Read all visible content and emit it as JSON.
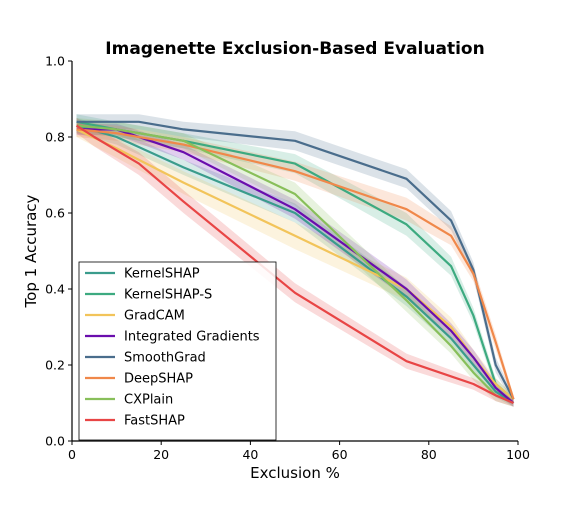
{
  "chart_data": {
    "type": "line",
    "title": "Imagenette Exclusion-Based Evaluation",
    "xlabel": "Exclusion %",
    "ylabel": "Top 1 Accuracy",
    "xlim": [
      0,
      100
    ],
    "ylim": [
      0.0,
      1.0
    ],
    "xticks": [
      0,
      20,
      40,
      60,
      80,
      100
    ],
    "yticks": [
      0.0,
      0.2,
      0.4,
      0.6,
      0.8,
      1.0
    ],
    "xtick_labels": [
      "0",
      "20",
      "40",
      "60",
      "80",
      "100"
    ],
    "ytick_labels": [
      "0.0",
      "0.2",
      "0.4",
      "0.6",
      "0.8",
      "1.0"
    ],
    "grid": false,
    "legend_position": "lower-left",
    "series": [
      {
        "name": "KernelSHAP",
        "color": "#3a9c8c",
        "x": [
          1,
          10,
          25,
          50,
          75,
          85,
          90,
          95,
          99
        ],
        "y": [
          0.83,
          0.8,
          0.72,
          0.6,
          0.38,
          0.27,
          0.2,
          0.13,
          0.1
        ],
        "band": [
          0.02,
          0.02,
          0.02,
          0.025,
          0.025,
          0.02,
          0.02,
          0.015,
          0.01
        ]
      },
      {
        "name": "KernelSHAP-S",
        "color": "#3daa80",
        "x": [
          1,
          10,
          25,
          50,
          75,
          85,
          90,
          95,
          99
        ],
        "y": [
          0.84,
          0.82,
          0.79,
          0.73,
          0.57,
          0.46,
          0.33,
          0.15,
          0.11
        ],
        "band": [
          0.02,
          0.02,
          0.02,
          0.025,
          0.03,
          0.025,
          0.02,
          0.015,
          0.01
        ]
      },
      {
        "name": "GradCAM",
        "color": "#f2c45a",
        "x": [
          1,
          10,
          25,
          50,
          75,
          85,
          90,
          95,
          99
        ],
        "y": [
          0.82,
          0.77,
          0.68,
          0.54,
          0.4,
          0.3,
          0.22,
          0.15,
          0.11
        ],
        "band": [
          0.02,
          0.025,
          0.03,
          0.035,
          0.03,
          0.025,
          0.02,
          0.015,
          0.01
        ]
      },
      {
        "name": "Integrated Gradients",
        "color": "#6a0dad",
        "x": [
          1,
          10,
          25,
          50,
          75,
          85,
          90,
          95,
          99
        ],
        "y": [
          0.82,
          0.82,
          0.76,
          0.61,
          0.4,
          0.29,
          0.22,
          0.14,
          0.1
        ],
        "band": [
          0.015,
          0.015,
          0.02,
          0.025,
          0.025,
          0.02,
          0.02,
          0.015,
          0.01
        ]
      },
      {
        "name": "SmoothGrad",
        "color": "#4a6d8c",
        "x": [
          1,
          5,
          15,
          25,
          50,
          75,
          85,
          90,
          95,
          99
        ],
        "y": [
          0.84,
          0.84,
          0.84,
          0.82,
          0.79,
          0.69,
          0.58,
          0.45,
          0.2,
          0.11
        ],
        "band": [
          0.02,
          0.02,
          0.02,
          0.02,
          0.025,
          0.025,
          0.025,
          0.02,
          0.02,
          0.01
        ]
      },
      {
        "name": "DeepSHAP",
        "color": "#f0884a",
        "x": [
          1,
          10,
          25,
          50,
          75,
          85,
          90,
          95,
          99
        ],
        "y": [
          0.82,
          0.81,
          0.78,
          0.71,
          0.61,
          0.54,
          0.44,
          0.26,
          0.11
        ],
        "band": [
          0.02,
          0.02,
          0.02,
          0.025,
          0.03,
          0.025,
          0.02,
          0.02,
          0.01
        ]
      },
      {
        "name": "CXPlain",
        "color": "#88bf5a",
        "x": [
          1,
          10,
          25,
          50,
          75,
          85,
          90,
          95,
          99
        ],
        "y": [
          0.83,
          0.82,
          0.79,
          0.65,
          0.37,
          0.25,
          0.18,
          0.12,
          0.1
        ],
        "band": [
          0.02,
          0.02,
          0.02,
          0.03,
          0.03,
          0.02,
          0.02,
          0.015,
          0.01
        ]
      },
      {
        "name": "FastSHAP",
        "color": "#e84545",
        "x": [
          1,
          5,
          15,
          25,
          50,
          75,
          90,
          95,
          99
        ],
        "y": [
          0.83,
          0.8,
          0.73,
          0.63,
          0.39,
          0.21,
          0.15,
          0.12,
          0.1
        ],
        "band": [
          0.02,
          0.025,
          0.03,
          0.03,
          0.025,
          0.02,
          0.015,
          0.015,
          0.01
        ]
      }
    ]
  }
}
